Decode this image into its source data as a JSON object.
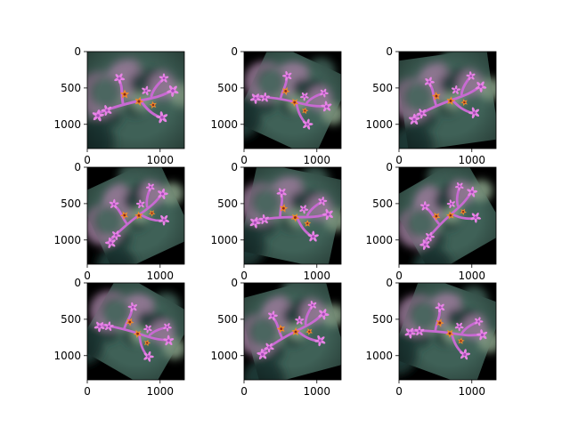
{
  "figure": {
    "background": "#ffffff"
  },
  "chart_data": [
    {
      "type": "image",
      "panel": 1,
      "rotation_deg": 0,
      "xticks": [
        0,
        1000
      ],
      "yticks": [
        0,
        500,
        1000
      ],
      "xlim": [
        0,
        1333
      ],
      "ylim": [
        1333,
        0
      ]
    },
    {
      "type": "image",
      "panel": 2,
      "rotation_deg": 25,
      "xticks": [
        0,
        1000
      ],
      "yticks": [
        0,
        500,
        1000
      ],
      "xlim": [
        0,
        1333
      ],
      "ylim": [
        1333,
        0
      ]
    },
    {
      "type": "image",
      "panel": 3,
      "rotation_deg": -8,
      "xticks": [
        0,
        1000
      ],
      "yticks": [
        0,
        500,
        1000
      ],
      "xlim": [
        0,
        1333
      ],
      "ylim": [
        1333,
        0
      ]
    },
    {
      "type": "image",
      "panel": 4,
      "rotation_deg": -25,
      "xticks": [
        0,
        1000
      ],
      "yticks": [
        0,
        500,
        1000
      ],
      "xlim": [
        0,
        1333
      ],
      "ylim": [
        1333,
        0
      ]
    },
    {
      "type": "image",
      "panel": 5,
      "rotation_deg": 12,
      "xticks": [
        0,
        1000
      ],
      "yticks": [
        0,
        500,
        1000
      ],
      "xlim": [
        0,
        1333
      ],
      "ylim": [
        1333,
        0
      ]
    },
    {
      "type": "image",
      "panel": 6,
      "rotation_deg": -30,
      "xticks": [
        0,
        1000
      ],
      "yticks": [
        0,
        500,
        1000
      ],
      "xlim": [
        0,
        1333
      ],
      "ylim": [
        1333,
        0
      ]
    },
    {
      "type": "image",
      "panel": 7,
      "rotation_deg": 30,
      "xticks": [
        0,
        1000
      ],
      "yticks": [
        0,
        500,
        1000
      ],
      "xlim": [
        0,
        1333
      ],
      "ylim": [
        1333,
        0
      ]
    },
    {
      "type": "image",
      "panel": 8,
      "rotation_deg": -15,
      "xticks": [
        0,
        1000
      ],
      "yticks": [
        0,
        500,
        1000
      ],
      "xlim": [
        0,
        1333
      ],
      "ylim": [
        1333,
        0
      ]
    },
    {
      "type": "image",
      "panel": 9,
      "rotation_deg": 20,
      "xticks": [
        0,
        1000
      ],
      "yticks": [
        0,
        500,
        1000
      ],
      "xlim": [
        0,
        1333
      ],
      "ylim": [
        1333,
        0
      ]
    }
  ],
  "palette": {
    "frame": "#000000",
    "fill_black": "#000000",
    "bokeh_dark": "#1f3a36",
    "bokeh_mid": "#3f6157",
    "bokeh_light": "#8aa38a",
    "bokeh_pink": "#9b7a9a",
    "stem": "#c86ad2",
    "flower": "#e884e6",
    "flower_dark": "#a84ab8",
    "star": "#f08a2a",
    "star_center": "#8a2a1a"
  }
}
